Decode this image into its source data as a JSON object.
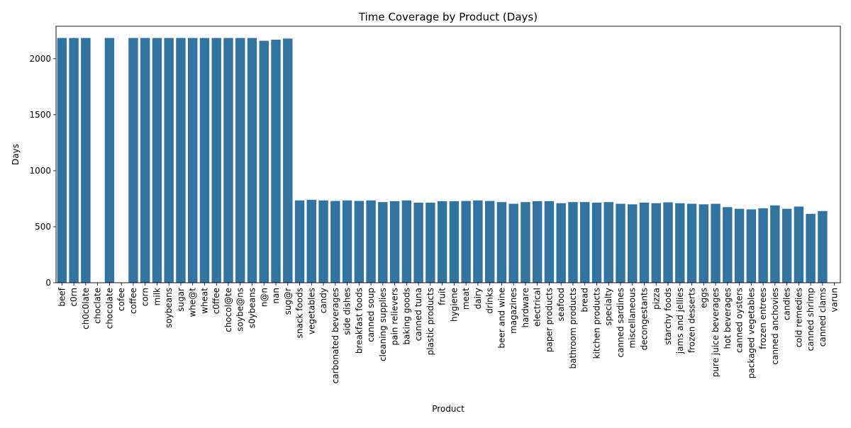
{
  "chart_data": {
    "type": "bar",
    "title": "Time Coverage by Product (Days)",
    "xlabel": "Product",
    "ylabel": "Days",
    "ylim": [
      0,
      2290
    ],
    "yticks": [
      0,
      500,
      1000,
      1500,
      2000
    ],
    "grid": false,
    "bar_color": "#3274a1",
    "categories": [
      "beef",
      "c0rn",
      "ch0c0late",
      "choclate",
      "chocolate",
      "cofee",
      "coffee",
      "corn",
      "milk",
      "soybeans",
      "sugar",
      "whe@t",
      "wheat",
      "c0ffee",
      "chocol@te",
      "soybe@ns",
      "s0ybeans",
      "n@n",
      "nan",
      "sug@r",
      "snack foods",
      "vegetables",
      "candy",
      "carbonated beverages",
      "side dishes",
      "breakfast foods",
      "canned soup",
      "cleaning supplies",
      "pain relievers",
      "baking goods",
      "canned tuna",
      "plastic products",
      "fruit",
      "hygiene",
      "meat",
      "dairy",
      "drinks",
      "beer and wine",
      "magazines",
      "hardware",
      "electrical",
      "paper products",
      "seafood",
      "bathroom products",
      "bread",
      "kitchen products",
      "specialty",
      "canned sardines",
      "miscellaneous",
      "decongestants",
      "pizza",
      "starchy foods",
      "jams and jellies",
      "frozen desserts",
      "eggs",
      "pure juice beverages",
      "hot beverages",
      "canned oysters",
      "packaged vegetables",
      "frozen entrees",
      "canned anchovies",
      "candles",
      "cold remedies",
      "canned shrimp",
      "canned clams",
      "varun"
    ],
    "values": [
      2185,
      2185,
      2185,
      0,
      2185,
      0,
      2185,
      2185,
      2185,
      2185,
      2185,
      2185,
      2185,
      2185,
      2185,
      2185,
      2185,
      2160,
      2170,
      2180,
      735,
      740,
      735,
      730,
      735,
      730,
      735,
      720,
      728,
      735,
      715,
      715,
      728,
      728,
      730,
      735,
      730,
      720,
      705,
      720,
      728,
      728,
      710,
      720,
      720,
      715,
      720,
      705,
      700,
      715,
      710,
      718,
      710,
      705,
      700,
      705,
      675,
      660,
      655,
      665,
      690,
      660,
      680,
      615,
      640,
      0
    ]
  }
}
